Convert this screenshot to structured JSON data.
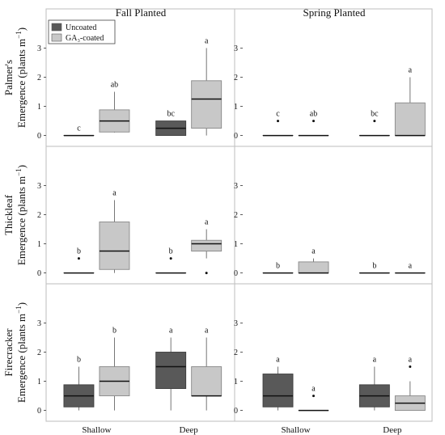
{
  "chart_data": {
    "type": "boxplot",
    "col_titles": [
      "Fall Planted",
      "Spring Planted"
    ],
    "row_titles": [
      "Palmer's",
      "Thickleaf",
      "Firecracker"
    ],
    "ylabel_prefix": "Emergence (plants m",
    "ylabel_sup": "−1",
    "ylabel_suffix": ")",
    "categories": [
      "Shallow",
      "Deep"
    ],
    "ylim": [
      -0.15,
      3.9
    ],
    "yticks": [
      0,
      1,
      2,
      3
    ],
    "legend": {
      "position": "top-left",
      "entries": [
        {
          "label": "Uncoated",
          "color": "#595959"
        },
        {
          "label": "GA₃-coated",
          "color": "#c8c8c8"
        }
      ]
    },
    "colors": {
      "uncoated": "#595959",
      "coated": "#c8c8c8",
      "border": "#888888"
    },
    "panels": [
      {
        "row": 0,
        "col": 0,
        "boxes": [
          {
            "depth": "Shallow",
            "treatment": "Uncoated",
            "min": 0,
            "q1": 0,
            "median": 0,
            "q3": 0,
            "max": 0,
            "outliers": [],
            "letter": "c"
          },
          {
            "depth": "Shallow",
            "treatment": "GA₃-coated",
            "min": 0.1,
            "q1": 0.12,
            "median": 0.5,
            "q3": 0.88,
            "max": 1.5,
            "outliers": [],
            "letter": "ab"
          },
          {
            "depth": "Deep",
            "treatment": "Uncoated",
            "min": 0,
            "q1": 0,
            "median": 0.25,
            "q3": 0.5,
            "max": 0.5,
            "outliers": [],
            "letter": "bc"
          },
          {
            "depth": "Deep",
            "treatment": "GA₃-coated",
            "min": 0,
            "q1": 0.25,
            "median": 1.25,
            "q3": 1.88,
            "max": 3.0,
            "outliers": [],
            "letter": "a"
          }
        ]
      },
      {
        "row": 0,
        "col": 1,
        "boxes": [
          {
            "depth": "Shallow",
            "treatment": "Uncoated",
            "min": 0,
            "q1": 0,
            "median": 0,
            "q3": 0,
            "max": 0,
            "outliers": [
              0.5
            ],
            "letter": "c"
          },
          {
            "depth": "Shallow",
            "treatment": "GA₃-coated",
            "min": 0,
            "q1": 0,
            "median": 0,
            "q3": 0,
            "max": 0,
            "outliers": [
              0.5
            ],
            "letter": "ab"
          },
          {
            "depth": "Deep",
            "treatment": "Uncoated",
            "min": 0,
            "q1": 0,
            "median": 0,
            "q3": 0,
            "max": 0,
            "outliers": [
              0.5
            ],
            "letter": "bc"
          },
          {
            "depth": "Deep",
            "treatment": "GA₃-coated",
            "min": 0,
            "q1": 0,
            "median": 0,
            "q3": 1.12,
            "max": 2.0,
            "outliers": [],
            "letter": "a"
          }
        ]
      },
      {
        "row": 1,
        "col": 0,
        "boxes": [
          {
            "depth": "Shallow",
            "treatment": "Uncoated",
            "min": 0,
            "q1": 0,
            "median": 0,
            "q3": 0,
            "max": 0,
            "outliers": [
              0.5
            ],
            "letter": "b"
          },
          {
            "depth": "Shallow",
            "treatment": "GA₃-coated",
            "min": 0,
            "q1": 0.12,
            "median": 0.75,
            "q3": 1.75,
            "max": 2.5,
            "outliers": [],
            "letter": "a"
          },
          {
            "depth": "Deep",
            "treatment": "Uncoated",
            "min": 0,
            "q1": 0,
            "median": 0,
            "q3": 0,
            "max": 0,
            "outliers": [
              0.5
            ],
            "letter": "b"
          },
          {
            "depth": "Deep",
            "treatment": "GA₃-coated",
            "min": 0.5,
            "q1": 0.75,
            "median": 1.0,
            "q3": 1.12,
            "max": 1.5,
            "outliers": [
              0
            ],
            "letter": "a"
          }
        ]
      },
      {
        "row": 1,
        "col": 1,
        "boxes": [
          {
            "depth": "Shallow",
            "treatment": "Uncoated",
            "min": 0,
            "q1": 0,
            "median": 0,
            "q3": 0,
            "max": 0,
            "outliers": [],
            "letter": "b"
          },
          {
            "depth": "Shallow",
            "treatment": "GA₃-coated",
            "min": 0,
            "q1": 0,
            "median": 0,
            "q3": 0.38,
            "max": 0.5,
            "outliers": [],
            "letter": "a"
          },
          {
            "depth": "Deep",
            "treatment": "Uncoated",
            "min": 0,
            "q1": 0,
            "median": 0,
            "q3": 0,
            "max": 0,
            "outliers": [],
            "letter": "b"
          },
          {
            "depth": "Deep",
            "treatment": "GA₃-coated",
            "min": 0,
            "q1": 0,
            "median": 0,
            "q3": 0,
            "max": 0,
            "outliers": [],
            "letter": "a"
          }
        ]
      },
      {
        "row": 2,
        "col": 0,
        "boxes": [
          {
            "depth": "Shallow",
            "treatment": "Uncoated",
            "min": 0,
            "q1": 0.12,
            "median": 0.5,
            "q3": 0.88,
            "max": 1.5,
            "outliers": [],
            "letter": "b"
          },
          {
            "depth": "Shallow",
            "treatment": "GA₃-coated",
            "min": 0,
            "q1": 0.5,
            "median": 1.0,
            "q3": 1.5,
            "max": 2.5,
            "outliers": [],
            "letter": "b"
          },
          {
            "depth": "Deep",
            "treatment": "Uncoated",
            "min": 0,
            "q1": 0.75,
            "median": 1.5,
            "q3": 2.0,
            "max": 2.5,
            "outliers": [],
            "letter": "a"
          },
          {
            "depth": "Deep",
            "treatment": "GA₃-coated",
            "min": 0,
            "q1": 0.5,
            "median": 0.5,
            "q3": 1.5,
            "max": 2.5,
            "outliers": [],
            "letter": "a"
          }
        ]
      },
      {
        "row": 2,
        "col": 1,
        "boxes": [
          {
            "depth": "Shallow",
            "treatment": "Uncoated",
            "min": 0,
            "q1": 0.12,
            "median": 0.5,
            "q3": 1.25,
            "max": 1.5,
            "outliers": [],
            "letter": "a"
          },
          {
            "depth": "Shallow",
            "treatment": "GA₃-coated",
            "min": 0,
            "q1": 0,
            "median": 0,
            "q3": 0,
            "max": 0,
            "outliers": [
              0.5
            ],
            "letter": "a"
          },
          {
            "depth": "Deep",
            "treatment": "Uncoated",
            "min": 0,
            "q1": 0.12,
            "median": 0.5,
            "q3": 0.88,
            "max": 1.5,
            "outliers": [],
            "letter": "a"
          },
          {
            "depth": "Deep",
            "treatment": "GA₃-coated",
            "min": 0,
            "q1": 0,
            "median": 0.25,
            "q3": 0.5,
            "max": 1.0,
            "outliers": [
              1.5
            ],
            "letter": "a"
          }
        ]
      }
    ]
  }
}
